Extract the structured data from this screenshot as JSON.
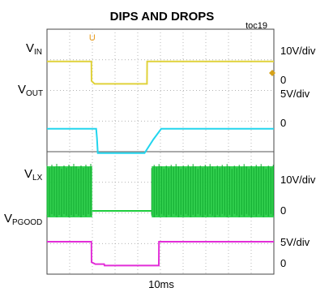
{
  "chart_data": {
    "type": "line",
    "title": "DIPS AND DROPS",
    "figure_id": "toc19",
    "xlabel": "10ms",
    "grid": true,
    "time_divisions": 10,
    "series": [
      {
        "name_main": "V",
        "name_sub": "IN",
        "color": "#e0d23a",
        "scale_label": "10V/div",
        "zero_label": "",
        "points": [
          [
            0,
            0.9
          ],
          [
            5.6,
            0.9
          ],
          [
            5.62,
            2.9
          ],
          [
            6.0,
            3.2
          ],
          [
            12.6,
            3.2
          ],
          [
            12.62,
            0.9
          ],
          [
            28.6,
            0.9
          ]
        ]
      },
      {
        "name_main": "V",
        "name_sub": "OUT",
        "color": "#22d5ee",
        "scale_label": "5V/div",
        "zero_label": "0",
        "zero_label_2": "0",
        "points": [
          [
            0,
            0.9
          ],
          [
            6.2,
            0.9
          ],
          [
            6.3,
            1.9
          ],
          [
            6.4,
            3.4
          ],
          [
            12.3,
            3.4
          ],
          [
            13.4,
            2.0
          ],
          [
            14.4,
            0.9
          ],
          [
            28.6,
            0.9
          ]
        ]
      },
      {
        "name_main": "V",
        "name_sub": "LX",
        "color": "#1dcc3d",
        "scale_label": "10V/div",
        "zero_label": "0",
        "switching_ranges": [
          [
            0,
            5.7
          ],
          [
            13.2,
            28.6
          ]
        ]
      },
      {
        "name_main": "V",
        "name_sub": "PGOOD",
        "color": "#e22ed8",
        "scale_label": "5V/div",
        "zero_label": "0",
        "points": [
          [
            0,
            0.0
          ],
          [
            5.6,
            0.0
          ],
          [
            5.62,
            2.1
          ],
          [
            6.1,
            2.3
          ],
          [
            7.2,
            2.3
          ],
          [
            7.25,
            2.45
          ],
          [
            14.1,
            2.45
          ],
          [
            14.12,
            0.0
          ],
          [
            28.6,
            0.0
          ]
        ]
      }
    ]
  }
}
